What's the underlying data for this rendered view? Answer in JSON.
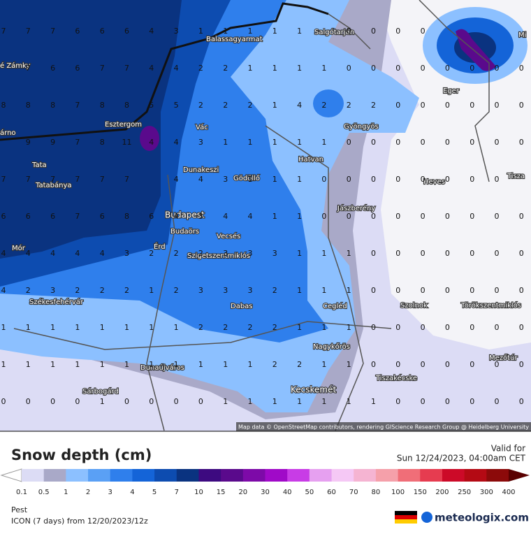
{
  "map": {
    "cities": [
      "Balassagyarmat",
      "Salgótarján",
      "Eger",
      "é Zámky",
      "árno",
      "Esztergom",
      "Vác",
      "Gyöngyös",
      "Tata",
      "Dunakeszi",
      "Gödöllő",
      "Hatvan",
      "Tatabánya",
      "Heves",
      "Tisza",
      "Jászberény",
      "Budapest",
      "Budaörs",
      "Vecsés",
      "Mór",
      "Érd",
      "Szigetszentmiklós",
      "Székesfehérvár",
      "Dabas",
      "Cegléd",
      "Szolnok",
      "Törökszentmiklós",
      "Nagykőrös",
      "Mezőtúr",
      "Dunaújváros",
      "Tiszakécske",
      "Sárbogárd",
      "Kecskemét",
      "Mi"
    ],
    "grid": [
      [
        7,
        7,
        7,
        6,
        6,
        6,
        4,
        3,
        1,
        1,
        1,
        1,
        1,
        null,
        0,
        0,
        0,
        0,
        null,
        null,
        null,
        null
      ],
      [
        null,
        7,
        6,
        6,
        7,
        7,
        4,
        4,
        2,
        2,
        1,
        1,
        1,
        1,
        0,
        0,
        0,
        0,
        0,
        0,
        0,
        0
      ],
      [
        8,
        8,
        8,
        7,
        8,
        8,
        5,
        5,
        2,
        2,
        2,
        1,
        4,
        2,
        2,
        2,
        0,
        0,
        0,
        0,
        0,
        0
      ],
      [
        null,
        9,
        9,
        7,
        8,
        11,
        4,
        4,
        3,
        1,
        1,
        1,
        1,
        1,
        0,
        0,
        0,
        0,
        0,
        0,
        0,
        0
      ],
      [
        7,
        7,
        7,
        7,
        7,
        7,
        null,
        4,
        4,
        3,
        1,
        1,
        1,
        0,
        0,
        0,
        0,
        0,
        0,
        0,
        0,
        null
      ],
      [
        6,
        6,
        6,
        7,
        6,
        8,
        6,
        4,
        3,
        4,
        4,
        1,
        1,
        0,
        0,
        0,
        0,
        0,
        0,
        0,
        0,
        0
      ],
      [
        4,
        4,
        4,
        4,
        4,
        3,
        2,
        2,
        2,
        3,
        3,
        3,
        1,
        1,
        1,
        0,
        0,
        0,
        0,
        0,
        0,
        0
      ],
      [
        4,
        2,
        3,
        2,
        2,
        2,
        1,
        2,
        3,
        3,
        3,
        2,
        1,
        1,
        1,
        0,
        0,
        0,
        0,
        0,
        0,
        0
      ],
      [
        1,
        1,
        1,
        1,
        1,
        1,
        1,
        1,
        2,
        2,
        2,
        2,
        1,
        1,
        1,
        0,
        0,
        0,
        0,
        0,
        0,
        0
      ],
      [
        1,
        1,
        1,
        1,
        1,
        1,
        1,
        1,
        1,
        1,
        1,
        2,
        2,
        1,
        1,
        0,
        0,
        0,
        0,
        0,
        0,
        0
      ],
      [
        0,
        0,
        0,
        0,
        1,
        0,
        0,
        0,
        0,
        1,
        1,
        1,
        1,
        1,
        1,
        1,
        0,
        0,
        0,
        0,
        0,
        0
      ]
    ],
    "attribution": "Map data © OpenStreetMap contributors, rendering GIScience Research Group @ Heidelberg University"
  },
  "legend": {
    "title": "Snow depth (cm)",
    "valid_label": "Valid for",
    "valid_time": "Sun 12/24/2023, 04:00am CET",
    "labels": [
      0.1,
      0.5,
      1,
      2,
      3,
      4,
      5,
      7,
      10,
      15,
      20,
      30,
      40,
      50,
      60,
      70,
      80,
      100,
      150,
      200,
      250,
      300,
      400
    ],
    "colors": [
      "#dcdcf5",
      "#a9a9c8",
      "#8cc0ff",
      "#5aa0f5",
      "#2f7fec",
      "#1464d8",
      "#0d4cb0",
      "#0a3380",
      "#3d0a80",
      "#5a0a8c",
      "#7d0aa8",
      "#a00ac8",
      "#c83ce6",
      "#e6a0f0",
      "#f5c8f5",
      "#f5b4d2",
      "#f5a0aa",
      "#f06e78",
      "#e63c50",
      "#cc0a28",
      "#b40a14",
      "#8c0a0a"
    ]
  },
  "footer": {
    "region": "Pest",
    "model": "ICON (7 days) from 12/20/2023/12z",
    "brand": "meteologix.com"
  }
}
